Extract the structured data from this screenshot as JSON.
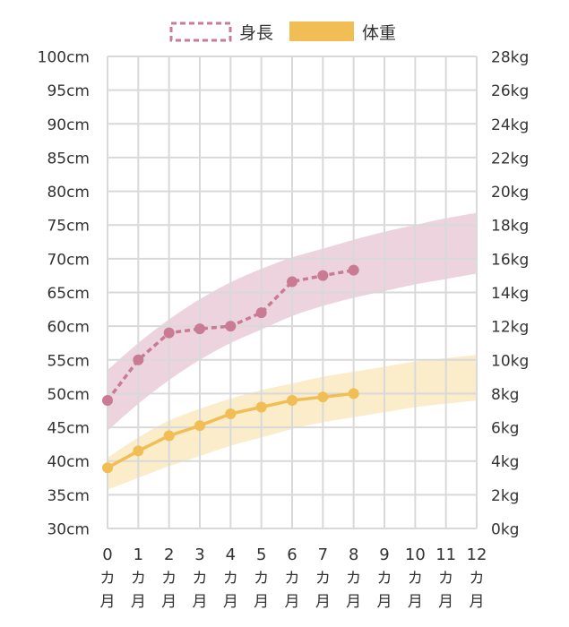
{
  "chart_data": {
    "type": "line",
    "x_categories": [
      {
        "num": "0",
        "unit1": "カ",
        "unit2": "月"
      },
      {
        "num": "1",
        "unit1": "カ",
        "unit2": "月"
      },
      {
        "num": "2",
        "unit1": "カ",
        "unit2": "月"
      },
      {
        "num": "3",
        "unit1": "カ",
        "unit2": "月"
      },
      {
        "num": "4",
        "unit1": "カ",
        "unit2": "月"
      },
      {
        "num": "5",
        "unit1": "カ",
        "unit2": "月"
      },
      {
        "num": "6",
        "unit1": "カ",
        "unit2": "月"
      },
      {
        "num": "7",
        "unit1": "カ",
        "unit2": "月"
      },
      {
        "num": "8",
        "unit1": "カ",
        "unit2": "月"
      },
      {
        "num": "9",
        "unit1": "カ",
        "unit2": "月"
      },
      {
        "num": "10",
        "unit1": "カ",
        "unit2": "月"
      },
      {
        "num": "11",
        "unit1": "カ",
        "unit2": "月"
      },
      {
        "num": "12",
        "unit1": "カ",
        "unit2": "月"
      }
    ],
    "y_left": {
      "unit": "cm",
      "min": 30,
      "max": 100,
      "step": 5,
      "ticks": [
        "100cm",
        "95cm",
        "90cm",
        "85cm",
        "80cm",
        "75cm",
        "70cm",
        "65cm",
        "60cm",
        "55cm",
        "50cm",
        "45cm",
        "40cm",
        "35cm",
        "30cm"
      ]
    },
    "y_right": {
      "unit": "kg",
      "min": 0,
      "max": 28,
      "step": 2,
      "ticks": [
        "28kg",
        "26kg",
        "24kg",
        "22kg",
        "20kg",
        "18kg",
        "16kg",
        "14kg",
        "12kg",
        "10kg",
        "8kg",
        "6kg",
        "4kg",
        "2kg",
        "0kg"
      ]
    },
    "grid": true,
    "legend_position": "top-center",
    "legend": [
      {
        "label": "身長",
        "style": "dashed-outline"
      },
      {
        "label": "体重",
        "style": "filled"
      }
    ],
    "series": [
      {
        "name": "身長",
        "axis": "left",
        "color": "#c97b93",
        "line": "dashed",
        "x": [
          0,
          1,
          2,
          3,
          4,
          5,
          6,
          7,
          8
        ],
        "values": [
          49,
          55,
          59,
          59.6,
          60,
          62,
          66.6,
          67.5,
          68.3
        ]
      },
      {
        "name": "体重",
        "axis": "right",
        "color": "#f0be55",
        "line": "solid",
        "x": [
          0,
          1,
          2,
          3,
          4,
          5,
          6,
          7,
          8
        ],
        "values": [
          3.6,
          4.6,
          5.5,
          6.1,
          6.8,
          7.2,
          7.6,
          7.8,
          8.0
        ]
      }
    ],
    "reference_bands": [
      {
        "series": "身長",
        "axis": "left",
        "color": "#ecd3dd",
        "x": [
          0,
          1,
          2,
          3,
          4,
          5,
          6,
          7,
          8,
          9,
          10,
          11,
          12
        ],
        "lower": [
          44.5,
          48.5,
          52,
          55,
          57.5,
          59.5,
          61.5,
          63,
          64.2,
          65.2,
          66.2,
          67,
          67.8
        ],
        "upper": [
          53.5,
          57.5,
          61,
          64,
          66.5,
          68.5,
          70.2,
          71.5,
          72.8,
          74,
          75,
          76,
          76.8
        ]
      },
      {
        "series": "体重",
        "axis": "right",
        "color": "#fbecca",
        "x": [
          0,
          1,
          2,
          3,
          4,
          5,
          6,
          7,
          8,
          9,
          10,
          11,
          12
        ],
        "lower": [
          2.3,
          3.0,
          3.7,
          4.3,
          4.9,
          5.4,
          5.9,
          6.3,
          6.6,
          6.9,
          7.2,
          7.4,
          7.6
        ],
        "upper": [
          4.2,
          5.4,
          6.4,
          7.1,
          7.7,
          8.2,
          8.6,
          9.0,
          9.3,
          9.6,
          9.9,
          10.1,
          10.3
        ]
      }
    ]
  }
}
